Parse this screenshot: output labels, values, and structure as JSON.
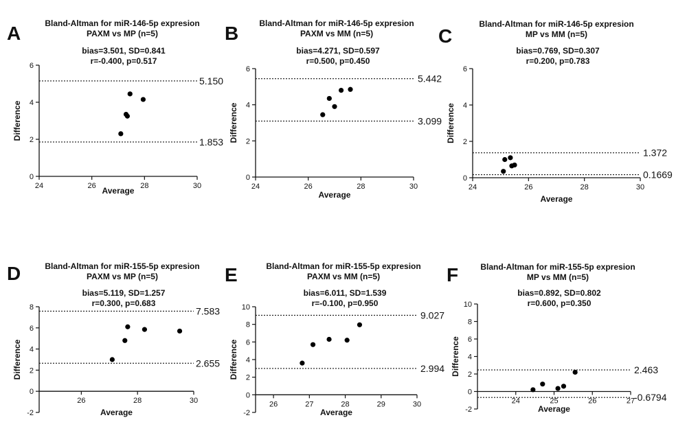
{
  "chart_data": [
    {
      "type": "scatter",
      "letter": "A",
      "title_line1": "Bland-Altman for miR-146-5p expresion",
      "title_line2": "PAXM vs MP (n=5)",
      "stats_line1": "bias=3.501, SD=0.841",
      "stats_line2": "r=-0.400, p=0.517",
      "xlabel": "Average",
      "ylabel": "Difference",
      "xlim": [
        24,
        30
      ],
      "ylim": [
        0,
        6
      ],
      "xticks": [
        24,
        26,
        28,
        30
      ],
      "yticks": [
        0,
        2,
        4,
        6
      ],
      "x": [
        27.1,
        27.3,
        27.35,
        27.45,
        27.95
      ],
      "y": [
        2.3,
        3.35,
        3.25,
        4.45,
        4.15
      ],
      "upper_loa": 5.15,
      "lower_loa": 1.853,
      "upper_label": "5.150",
      "lower_label": "1.853"
    },
    {
      "type": "scatter",
      "letter": "B",
      "title_line1": "Bland-Altman for miR-146-5p expresion",
      "title_line2": "PAXM vs MM (n=5)",
      "stats_line1": "bias=4.271, SD=0.597",
      "stats_line2": "r=0.500, p=0.450",
      "xlabel": "Average",
      "ylabel": "Difference",
      "xlim": [
        24,
        30
      ],
      "ylim": [
        0,
        6
      ],
      "xticks": [
        24,
        26,
        28,
        30
      ],
      "yticks": [
        0,
        2,
        4,
        6
      ],
      "x": [
        26.55,
        26.8,
        27.0,
        27.25,
        27.6
      ],
      "y": [
        3.45,
        4.35,
        3.9,
        4.8,
        4.85
      ],
      "upper_loa": 5.442,
      "lower_loa": 3.099,
      "upper_label": "5.442",
      "lower_label": "3.099"
    },
    {
      "type": "scatter",
      "letter": "C",
      "title_line1": "Bland-Altman for miR-146-5p expresion",
      "title_line2": "MP vs MM (n=5)",
      "stats_line1": "bias=0.769, SD=0.307",
      "stats_line2": "r=0.200, p=0.783",
      "xlabel": "Average",
      "ylabel": "Difference",
      "xlim": [
        24,
        30
      ],
      "ylim": [
        0,
        6
      ],
      "xticks": [
        24,
        26,
        28,
        30
      ],
      "yticks": [
        0,
        2,
        4,
        6
      ],
      "x": [
        25.1,
        25.15,
        25.35,
        25.4,
        25.5
      ],
      "y": [
        0.35,
        1.0,
        1.1,
        0.65,
        0.7
      ],
      "upper_loa": 1.372,
      "lower_loa": 0.1669,
      "upper_label": "1.372",
      "lower_label": "0.1669"
    },
    {
      "type": "scatter",
      "letter": "D",
      "title_line1": "Bland-Altman for miR-155-5p expresion",
      "title_line2": "PAXM vs MP (n=5)",
      "stats_line1": "bias=5.119, SD=1.257",
      "stats_line2": "r=0.300, p=0.683",
      "xlabel": "Average",
      "ylabel": "Difference",
      "xlim": [
        24.5,
        30
      ],
      "ylim": [
        -2,
        8
      ],
      "xticks": [
        26,
        28,
        30
      ],
      "yticks": [
        -2,
        0,
        2,
        4,
        6,
        8
      ],
      "x": [
        27.1,
        27.55,
        27.65,
        28.25,
        29.5
      ],
      "y": [
        3.0,
        4.8,
        6.1,
        5.85,
        5.7
      ],
      "upper_loa": 7.583,
      "lower_loa": 2.655,
      "upper_label": "7.583",
      "lower_label": "2.655"
    },
    {
      "type": "scatter",
      "letter": "E",
      "title_line1": "Bland-Altman for miR-155-5p expresion",
      "title_line2": "PAXM vs MM (n=5)",
      "stats_line1": "bias=6.011, SD=1.539",
      "stats_line2": "r=-0.100, p=0.950",
      "xlabel": "Average",
      "ylabel": "Difference",
      "xlim": [
        25.5,
        30
      ],
      "ylim": [
        -2,
        10
      ],
      "xticks": [
        26,
        27,
        28,
        29,
        30
      ],
      "yticks": [
        -2,
        0,
        2,
        4,
        6,
        8,
        10
      ],
      "x": [
        26.8,
        27.1,
        27.55,
        28.05,
        28.4
      ],
      "y": [
        3.6,
        5.7,
        6.3,
        6.2,
        7.95
      ],
      "upper_loa": 9.027,
      "lower_loa": 2.994,
      "upper_label": "9.027",
      "lower_label": "2.994"
    },
    {
      "type": "scatter",
      "letter": "F",
      "title_line1": "Bland-Altman for miR-155-5p expresion",
      "title_line2": "MP vs MM (n=5)",
      "stats_line1": "bias=0.892, SD=0.802",
      "stats_line2": "r=0.600, p=0.350",
      "xlabel": "Average",
      "ylabel": "Difference",
      "xlim": [
        23,
        27
      ],
      "ylim": [
        -2,
        10
      ],
      "xticks": [
        24,
        25,
        26,
        27
      ],
      "yticks": [
        -2,
        0,
        2,
        4,
        6,
        8,
        10
      ],
      "x": [
        24.45,
        24.7,
        25.1,
        25.25,
        25.55
      ],
      "y": [
        0.2,
        0.85,
        0.35,
        0.6,
        2.2
      ],
      "upper_loa": 2.463,
      "lower_loa": -0.6794,
      "upper_label": "2.463",
      "lower_label": "-0.6794"
    }
  ]
}
